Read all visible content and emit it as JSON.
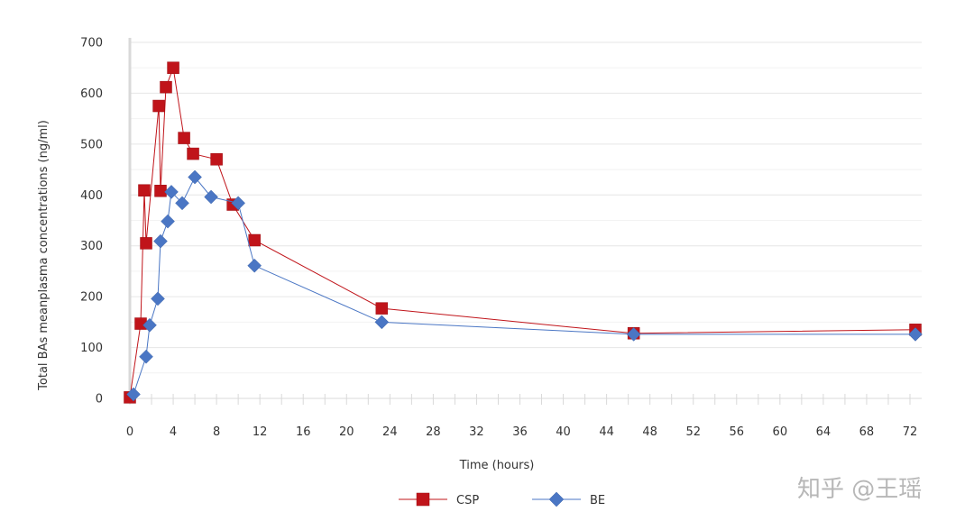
{
  "chart_data": {
    "type": "line",
    "title": "",
    "xlabel": "Time (hours)",
    "ylabel": "Total BAs meanplasma concentrations (ng/ml)",
    "xlim": [
      0,
      72
    ],
    "ylim": [
      0,
      700
    ],
    "x_ticks": [
      0,
      4,
      8,
      12,
      16,
      20,
      24,
      28,
      32,
      36,
      40,
      44,
      48,
      52,
      56,
      60,
      64,
      68,
      72
    ],
    "y_ticks": [
      0,
      100,
      200,
      300,
      400,
      500,
      600,
      700
    ],
    "grid": true,
    "legend_position": "bottom-center",
    "series": [
      {
        "name": "CSP",
        "color": "#c0141a",
        "marker": "square",
        "points": [
          [
            0,
            2
          ],
          [
            1,
            147
          ],
          [
            1.33,
            409
          ],
          [
            1.5,
            305
          ],
          [
            2.67,
            575
          ],
          [
            2.83,
            408
          ],
          [
            3.33,
            612
          ],
          [
            4,
            650
          ],
          [
            5,
            512
          ],
          [
            5.83,
            481
          ],
          [
            8,
            470
          ],
          [
            9.5,
            381
          ],
          [
            11.5,
            311
          ],
          [
            23.25,
            177
          ],
          [
            46.5,
            128
          ],
          [
            72.5,
            135
          ]
        ]
      },
      {
        "name": "BE",
        "color": "#4a76c4",
        "marker": "diamond",
        "points": [
          [
            0.33,
            8
          ],
          [
            1.5,
            82
          ],
          [
            1.83,
            144
          ],
          [
            2.58,
            196
          ],
          [
            2.83,
            309
          ],
          [
            3.5,
            348
          ],
          [
            3.83,
            406
          ],
          [
            4.83,
            384
          ],
          [
            6,
            435
          ],
          [
            7.5,
            396
          ],
          [
            10,
            384
          ],
          [
            11.5,
            261
          ],
          [
            23.25,
            150
          ],
          [
            46.5,
            126
          ],
          [
            72.5,
            126
          ]
        ]
      }
    ]
  },
  "watermark": "知乎 @王瑶"
}
